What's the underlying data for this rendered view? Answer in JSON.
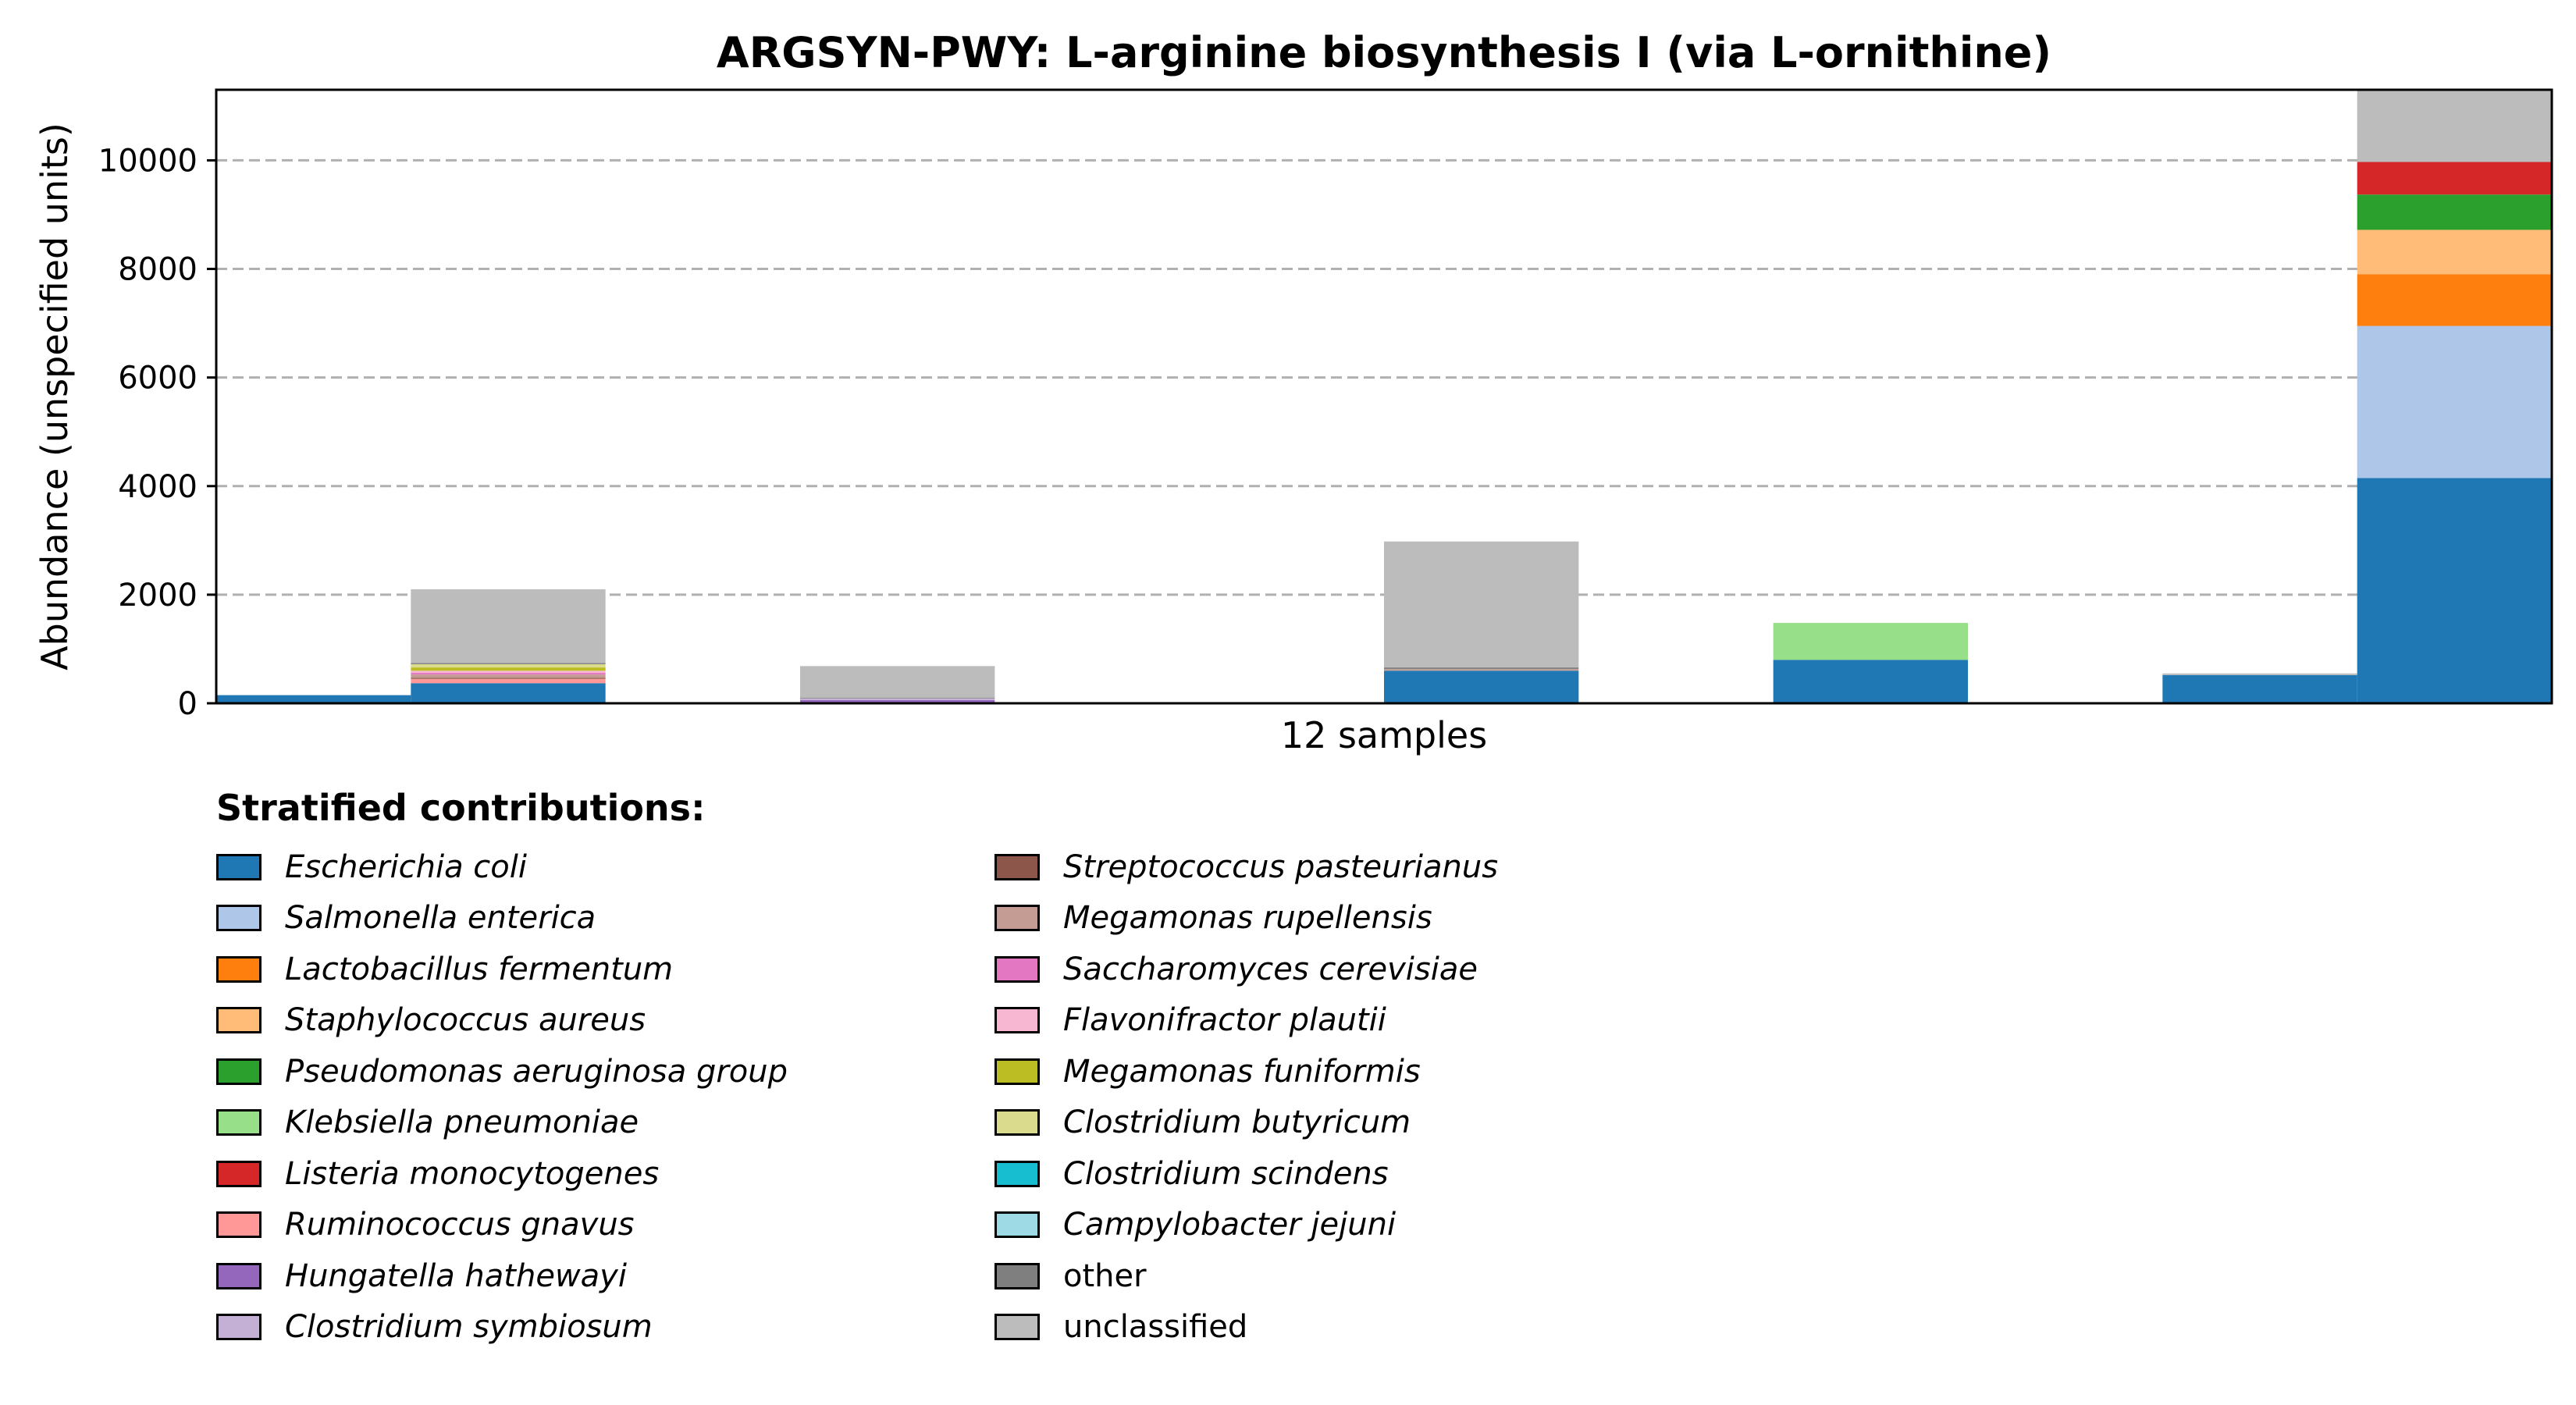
{
  "chart_data": {
    "type": "bar",
    "stacked": true,
    "title": "ARGSYN-PWY: L-arginine biosynthesis I (via L-ornithine)",
    "xlabel": "12 samples",
    "ylabel": "Abundance (unspecified units)",
    "ylim": [
      0,
      11300
    ],
    "yticks": [
      0,
      2000,
      4000,
      6000,
      8000,
      10000
    ],
    "grid": "y dashed",
    "n_samples": 12,
    "legend_title": "Stratified contributions:",
    "legend_placement": "below",
    "series": [
      {
        "name": "Escherichia coli",
        "color": "#1f77b4",
        "italic": true,
        "values": [
          150,
          370,
          0,
          0,
          0,
          0,
          600,
          0,
          800,
          0,
          520,
          4150
        ]
      },
      {
        "name": "Salmonella enterica",
        "color": "#aec7e8",
        "italic": true,
        "values": [
          0,
          0,
          0,
          0,
          0,
          0,
          0,
          0,
          0,
          0,
          0,
          2800
        ]
      },
      {
        "name": "Lactobacillus fermentum",
        "color": "#ff7f0e",
        "italic": true,
        "values": [
          0,
          0,
          0,
          0,
          0,
          0,
          0,
          0,
          0,
          0,
          0,
          950
        ]
      },
      {
        "name": "Staphylococcus aureus",
        "color": "#ffbb78",
        "italic": true,
        "values": [
          0,
          0,
          0,
          0,
          0,
          0,
          0,
          0,
          0,
          0,
          0,
          820
        ]
      },
      {
        "name": "Pseudomonas aeruginosa group",
        "color": "#2ca02c",
        "italic": true,
        "values": [
          0,
          0,
          0,
          0,
          0,
          0,
          0,
          0,
          0,
          0,
          0,
          650
        ]
      },
      {
        "name": "Klebsiella pneumoniae",
        "color": "#98df8a",
        "italic": true,
        "values": [
          0,
          0,
          0,
          0,
          0,
          0,
          0,
          0,
          680,
          0,
          0,
          0
        ]
      },
      {
        "name": "Listeria monocytogenes",
        "color": "#d62728",
        "italic": true,
        "values": [
          0,
          0,
          0,
          0,
          0,
          0,
          0,
          0,
          0,
          0,
          0,
          600
        ]
      },
      {
        "name": "Ruminococcus gnavus",
        "color": "#ff9896",
        "italic": true,
        "values": [
          0,
          80,
          0,
          0,
          0,
          0,
          0,
          0,
          0,
          0,
          0,
          0
        ]
      },
      {
        "name": "Hungatella hathewayi",
        "color": "#9467bd",
        "italic": true,
        "values": [
          0,
          0,
          0,
          60,
          0,
          0,
          0,
          0,
          0,
          0,
          0,
          0
        ]
      },
      {
        "name": "Clostridium symbiosum",
        "color": "#c5b0d5",
        "italic": true,
        "values": [
          0,
          0,
          0,
          30,
          0,
          0,
          0,
          0,
          0,
          0,
          0,
          0
        ]
      },
      {
        "name": "Streptococcus pasteurianus",
        "color": "#8c564b",
        "italic": true,
        "values": [
          0,
          20,
          0,
          0,
          0,
          0,
          0,
          0,
          0,
          0,
          0,
          0
        ]
      },
      {
        "name": "Megamonas rupellensis",
        "color": "#c49c94",
        "italic": true,
        "values": [
          0,
          60,
          0,
          0,
          0,
          0,
          30,
          0,
          0,
          0,
          0,
          0
        ]
      },
      {
        "name": "Saccharomyces cerevisiae",
        "color": "#e377c2",
        "italic": true,
        "values": [
          0,
          30,
          0,
          0,
          0,
          0,
          0,
          0,
          0,
          0,
          0,
          0
        ]
      },
      {
        "name": "Flavonifractor plautii",
        "color": "#f7b6d2",
        "italic": true,
        "values": [
          0,
          40,
          0,
          0,
          0,
          0,
          0,
          0,
          0,
          0,
          0,
          0
        ]
      },
      {
        "name": "Megamonas funiformis",
        "color": "#bcbd22",
        "italic": true,
        "values": [
          0,
          60,
          0,
          0,
          0,
          0,
          0,
          0,
          0,
          0,
          0,
          0
        ]
      },
      {
        "name": "Clostridium butyricum",
        "color": "#dbdb8d",
        "italic": true,
        "values": [
          0,
          60,
          0,
          0,
          0,
          0,
          0,
          0,
          0,
          0,
          0,
          0
        ]
      },
      {
        "name": "Clostridium scindens",
        "color": "#17becf",
        "italic": true,
        "values": [
          0,
          0,
          0,
          0,
          0,
          0,
          0,
          0,
          0,
          0,
          0,
          0
        ]
      },
      {
        "name": "Campylobacter jejuni",
        "color": "#9edae5",
        "italic": true,
        "values": [
          0,
          0,
          0,
          0,
          0,
          0,
          0,
          0,
          0,
          0,
          0,
          0
        ]
      },
      {
        "name": "other",
        "color": "#7f7f7f",
        "italic": false,
        "values": [
          0,
          20,
          0,
          15,
          0,
          0,
          30,
          0,
          0,
          0,
          0,
          0
        ]
      },
      {
        "name": "unclassified",
        "color": "#bcbcbc",
        "italic": false,
        "values": [
          0,
          1360,
          0,
          580,
          0,
          0,
          2320,
          0,
          0,
          0,
          30,
          1330
        ]
      }
    ]
  }
}
